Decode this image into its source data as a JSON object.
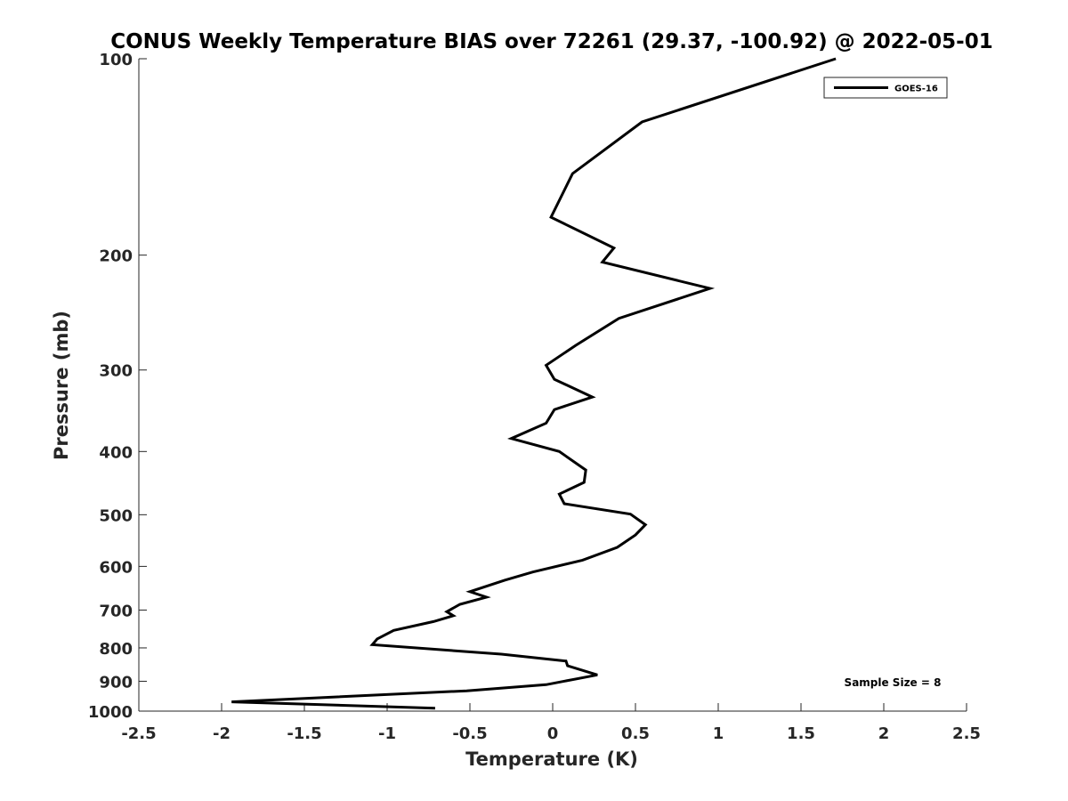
{
  "chart_data": {
    "type": "line",
    "title": "CONUS Weekly Temperature BIAS over 72261 (29.37, -100.92) @ 2022-05-01",
    "xlabel": "Temperature (K)",
    "ylabel": "Pressure (mb)",
    "xlim": [
      -2.5,
      2.5
    ],
    "ylim": [
      100,
      1000
    ],
    "y_scale": "log",
    "y_reversed": true,
    "x_ticks": [
      "-2.5",
      "-2",
      "-1.5",
      "-1",
      "-0.5",
      "0",
      "0.5",
      "1",
      "1.5",
      "2",
      "2.5"
    ],
    "y_ticks": [
      "100",
      "200",
      "300",
      "400",
      "500",
      "600",
      "700",
      "800",
      "900",
      "1000"
    ],
    "grid": false,
    "legend_position": "top-right",
    "series": [
      {
        "name": "GOES-16",
        "color": "#000000",
        "points": [
          [
            1.71,
            100
          ],
          [
            0.54,
            125
          ],
          [
            0.12,
            150
          ],
          [
            -0.01,
            175
          ],
          [
            0.37,
            195
          ],
          [
            0.3,
            205
          ],
          [
            0.95,
            225
          ],
          [
            0.4,
            250
          ],
          [
            0.14,
            275
          ],
          [
            -0.04,
            295
          ],
          [
            0.01,
            310
          ],
          [
            0.24,
            330
          ],
          [
            0.01,
            345
          ],
          [
            -0.04,
            362
          ],
          [
            -0.25,
            382
          ],
          [
            0.04,
            400
          ],
          [
            0.2,
            427
          ],
          [
            0.19,
            446
          ],
          [
            0.04,
            465
          ],
          [
            0.07,
            481
          ],
          [
            0.47,
            499
          ],
          [
            0.56,
            518
          ],
          [
            0.5,
            537
          ],
          [
            0.39,
            561
          ],
          [
            0.18,
            587
          ],
          [
            -0.12,
            612
          ],
          [
            -0.29,
            630
          ],
          [
            -0.5,
            656
          ],
          [
            -0.4,
            669
          ],
          [
            -0.56,
            686
          ],
          [
            -0.64,
            704
          ],
          [
            -0.6,
            714
          ],
          [
            -0.72,
            729
          ],
          [
            -0.96,
            752
          ],
          [
            -1.06,
            775
          ],
          [
            -1.09,
            791
          ],
          [
            -0.31,
            818
          ],
          [
            0.08,
            838
          ],
          [
            0.09,
            852
          ],
          [
            0.27,
            880
          ],
          [
            -0.04,
            911
          ],
          [
            -0.52,
            931
          ],
          [
            -1.94,
            968
          ],
          [
            -0.71,
            990
          ]
        ]
      }
    ],
    "annotations": [
      "Sample Size = 8"
    ]
  }
}
